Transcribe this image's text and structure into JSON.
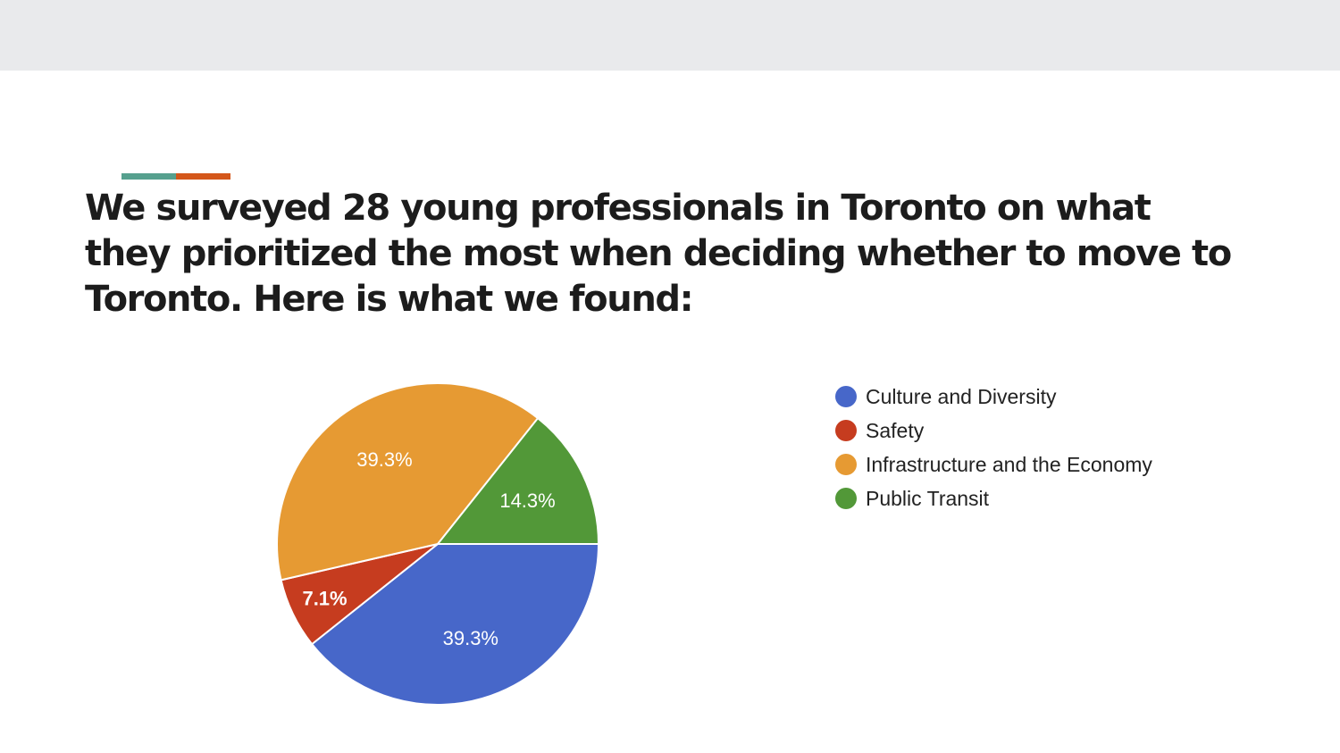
{
  "slide": {
    "headline": "We surveyed 28 young professionals in Toronto on what they prioritized the most when deciding whether to move to Toronto. Here is what we found:",
    "accent_colors": [
      "#56a08e",
      "#d4571a"
    ],
    "band_color": "#e9eaec"
  },
  "chart_data": {
    "type": "pie",
    "title": "",
    "start_angle_deg": 90,
    "direction": "clockwise",
    "legend_position": "right",
    "slices": [
      {
        "label": "Culture and Diversity",
        "value": 39.3,
        "display": "39.3%",
        "color": "#4767c9"
      },
      {
        "label": "Safety",
        "value": 7.1,
        "display": "7.1%",
        "color": "#c63c1f"
      },
      {
        "label": "Infrastructure and the Economy",
        "value": 39.3,
        "display": "39.3%",
        "color": "#e69a33"
      },
      {
        "label": "Public Transit",
        "value": 14.3,
        "display": "14.3%",
        "color": "#529838"
      }
    ]
  }
}
